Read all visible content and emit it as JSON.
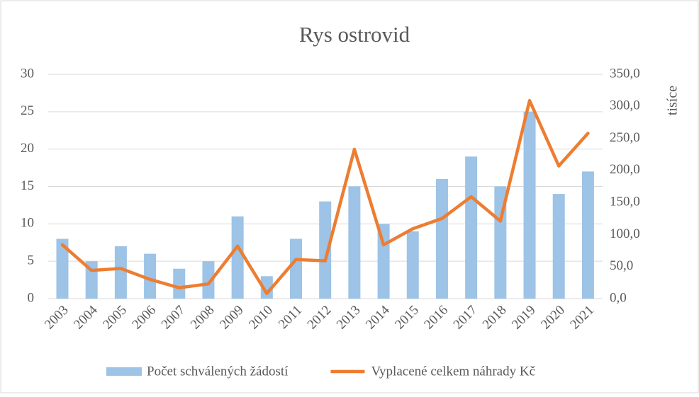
{
  "chart_data": {
    "type": "combo",
    "title": "Rys ostrovid",
    "categories": [
      "2003",
      "2004",
      "2005",
      "2006",
      "2007",
      "2008",
      "2009",
      "2010",
      "2011",
      "2012",
      "2013",
      "2014",
      "2015",
      "2016",
      "2017",
      "2018",
      "2019",
      "2020",
      "2021"
    ],
    "series": [
      {
        "name": "Počet schválených žádostí",
        "type": "bar",
        "color": "#9dc3e6",
        "values": [
          8,
          5,
          7,
          6,
          4,
          5,
          11,
          3,
          8,
          13,
          15,
          10,
          9,
          16,
          19,
          15,
          25,
          14,
          17
        ]
      },
      {
        "name": "Vyplacené celkem náhrady Kč",
        "type": "line",
        "axis": "y2",
        "color": "#ed7d31",
        "values": [
          84,
          44,
          47,
          30,
          17,
          23,
          82,
          8,
          61,
          59,
          233,
          84,
          109,
          125,
          159,
          121,
          309,
          207,
          258
        ]
      }
    ],
    "ylim": [
      0,
      30
    ],
    "yticks": [
      0,
      5,
      10,
      15,
      20,
      25,
      30
    ],
    "y2lim": [
      0,
      350
    ],
    "y2ticks": [
      {
        "value": 0,
        "label": "0,0"
      },
      {
        "value": 50,
        "label": "50,0"
      },
      {
        "value": 100,
        "label": "100,0"
      },
      {
        "value": 150,
        "label": "150,0"
      },
      {
        "value": 200,
        "label": "200,0"
      },
      {
        "value": 250,
        "label": "250,0"
      },
      {
        "value": 300,
        "label": "300,0"
      },
      {
        "value": 350,
        "label": "350,0"
      }
    ],
    "y2label": "tisíce",
    "grid": true,
    "legend": "bottom"
  }
}
